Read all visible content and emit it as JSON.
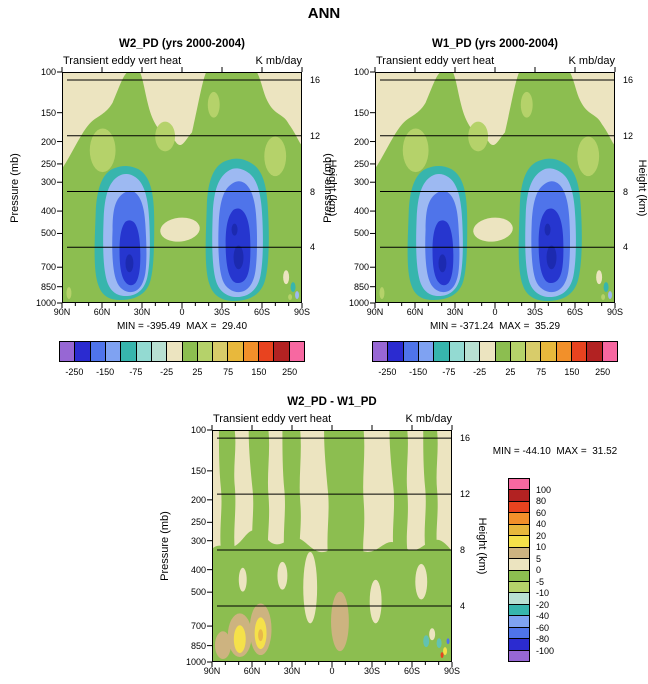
{
  "figure_title": "ANN",
  "axes": {
    "pressure_label": "Pressure (mb)",
    "height_label": "Height (km)",
    "pressure_ticks": [
      "100",
      "150",
      "200",
      "250",
      "300",
      "400",
      "500",
      "700",
      "850",
      "1000"
    ],
    "height_ticks": [
      "4",
      "8",
      "12",
      "16"
    ],
    "lat_ticks": [
      "90N",
      "60N",
      "30N",
      "0",
      "30S",
      "60S",
      "90S"
    ]
  },
  "panels": [
    {
      "title": "W2_PD (yrs 2000-2004)",
      "var_label": "Transient eddy vert heat",
      "units": "K mb/day",
      "min": "-395.49",
      "max": "29.40",
      "stats": "MIN = -395.49  MAX =  29.40"
    },
    {
      "title": "W1_PD (yrs 2000-2004)",
      "var_label": "Transient eddy vert heat",
      "units": "K mb/day",
      "min": "-371.24",
      "max": "35.29",
      "stats": "MIN = -371.24  MAX =  35.29"
    },
    {
      "title": "W2_PD - W1_PD",
      "var_label": "Transient eddy vert heat",
      "units": "K mb/day",
      "min": "-44.10",
      "max": "31.52",
      "stats": "MIN = -44.10  MAX =  31.52"
    }
  ],
  "colorbar_h": {
    "labels": [
      "-250",
      "-150",
      "-75",
      "-25",
      "25",
      "75",
      "150",
      "250"
    ],
    "colors": [
      "#9767d4",
      "#2b2bd0",
      "#4f74ea",
      "#7fa2f2",
      "#37b5ad",
      "#93dad2",
      "#b8e0d2",
      "#ece4c0",
      "#8cbe50",
      "#b5d26a",
      "#d8cc6a",
      "#e8b83c",
      "#f2902a",
      "#e8431f",
      "#b22222",
      "#f768a1"
    ]
  },
  "colorbar_v": {
    "labels": [
      "100",
      "80",
      "60",
      "40",
      "20",
      "10",
      "5",
      "0",
      "-5",
      "-10",
      "-20",
      "-40",
      "-60",
      "-80",
      "-100"
    ],
    "colors": [
      "#f768a1",
      "#b22222",
      "#e8431f",
      "#f2902a",
      "#e8b83c",
      "#f5e14a",
      "#cdb380",
      "#ece4c0",
      "#8cbe50",
      "#b5d26a",
      "#b8e0d2",
      "#37b5ad",
      "#7fa2f2",
      "#4f74ea",
      "#2b2bd0",
      "#9767d4"
    ]
  },
  "chart_data": [
    {
      "type": "heatmap",
      "chart_kind": "filled-contour latitude-pressure cross-section",
      "title": "W2_PD (yrs 2000-2004)",
      "field": "Transient eddy vert heat",
      "units": "K mb/day",
      "x_ticks": [
        "90N",
        "60N",
        "30N",
        "0",
        "30S",
        "60S",
        "90S"
      ],
      "y_left": {
        "label": "Pressure (mb)",
        "ticks": [
          100,
          150,
          200,
          250,
          300,
          400,
          500,
          700,
          850,
          1000
        ],
        "scale": "log"
      },
      "y_right": {
        "label": "Height (km)",
        "ticks": [
          4,
          8,
          12,
          16
        ]
      },
      "min": -395.49,
      "max": 29.4,
      "contour_levels": [
        -250,
        -200,
        -150,
        -100,
        -75,
        -50,
        -25,
        0,
        25,
        50,
        75,
        100,
        150,
        200,
        250
      ],
      "features": [
        "weak positive (green) values through most of the troposphere",
        "near-zero (beige) band above ~150 mb and a small near-zero pocket near the equator at ~500 mb",
        "strong negative centers (below -250 K mb/day, blue cores) near 40-60N and 40-60S between ~400 and 900 mb",
        "small noisy anomalies near 90S below 700 mb"
      ],
      "legend_position": "horizontal labelbar below panel"
    },
    {
      "type": "heatmap",
      "chart_kind": "filled-contour latitude-pressure cross-section",
      "title": "W1_PD (yrs 2000-2004)",
      "field": "Transient eddy vert heat",
      "units": "K mb/day",
      "x_ticks": [
        "90N",
        "60N",
        "30N",
        "0",
        "30S",
        "60S",
        "90S"
      ],
      "y_left": {
        "label": "Pressure (mb)",
        "ticks": [
          100,
          150,
          200,
          250,
          300,
          400,
          500,
          700,
          850,
          1000
        ],
        "scale": "log"
      },
      "y_right": {
        "label": "Height (km)",
        "ticks": [
          4,
          8,
          12,
          16
        ]
      },
      "min": -371.24,
      "max": 35.29,
      "contour_levels": [
        -250,
        -200,
        -150,
        -100,
        -75,
        -50,
        -25,
        0,
        25,
        50,
        75,
        100,
        150,
        200,
        250
      ],
      "features": [
        "pattern nearly identical to W2_PD panel",
        "strong negative (blue) midlatitude storm-track centers near 40-60N and 40-60S between ~400 and 900 mb"
      ],
      "legend_position": "horizontal labelbar below panel"
    },
    {
      "type": "heatmap",
      "chart_kind": "filled-contour latitude-pressure difference cross-section",
      "title": "W2_PD - W1_PD",
      "field": "Transient eddy vert heat",
      "units": "K mb/day",
      "x_ticks": [
        "90N",
        "60N",
        "30N",
        "0",
        "30S",
        "60S",
        "90S"
      ],
      "y_left": {
        "label": "Pressure (mb)",
        "ticks": [
          100,
          150,
          200,
          250,
          300,
          400,
          500,
          700,
          850,
          1000
        ],
        "scale": "log"
      },
      "y_right": {
        "label": "Height (km)",
        "ticks": [
          4,
          8,
          12,
          16
        ]
      },
      "min": -44.1,
      "max": 31.52,
      "contour_levels": [
        -100,
        -80,
        -60,
        -40,
        -20,
        -10,
        -5,
        0,
        5,
        10,
        20,
        40,
        60,
        80,
        100
      ],
      "features": [
        "mostly small differences (|diff| < 5, alternating green/beige vertical banding)",
        "positive differences of 10-20 (yellow blobs ringed by tan) near 50-70N between 700 and 1000 mb",
        "tan (5-10) vertical streak near the equator at 500-1000 mb",
        "scattered small anomalies near 60-90S below 700 mb"
      ],
      "legend_position": "vertical labelbar right of panel"
    }
  ]
}
